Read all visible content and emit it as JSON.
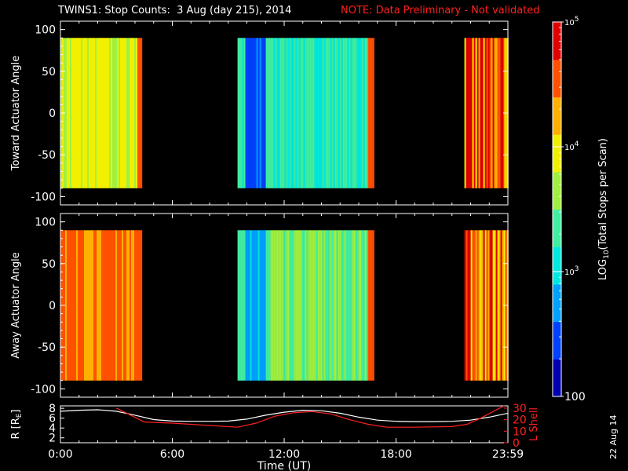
{
  "title": {
    "main": "TWINS1: Stop Counts:  3 Aug (day 215), 2014",
    "note": "NOTE: Data Preliminary - Not validated",
    "note_color": "#ff2020"
  },
  "stamp": "22 Aug 14",
  "chart_data": [
    {
      "type": "heatmap",
      "panel": "toward",
      "ylabel": "Toward Actuator Angle",
      "ylim": [
        -110,
        110
      ],
      "yticks": [
        100,
        50,
        0,
        -50,
        -100
      ],
      "x_range_hours": [
        0,
        24
      ],
      "data_y_range": [
        -90,
        90
      ],
      "segments": [
        {
          "start": "0:00",
          "end": "4:20",
          "level": "yellow-green",
          "log_counts": 3.85
        },
        {
          "start": "9:30",
          "end": "16:45",
          "level": "cyan with blue band near 10:00-11:00",
          "log_counts": 3.25
        },
        {
          "start": "21:40",
          "end": "24:00",
          "level": "mixed orange/yellow",
          "log_counts": 4.4
        }
      ]
    },
    {
      "type": "heatmap",
      "panel": "away",
      "ylabel": "Away Actuator Angle",
      "ylim": [
        -110,
        110
      ],
      "yticks": [
        100,
        50,
        0,
        -50,
        -100
      ],
      "x_range_hours": [
        0,
        24
      ],
      "data_y_range": [
        -90,
        90
      ],
      "segments": [
        {
          "start": "0:00",
          "end": "4:20",
          "level": "orange",
          "log_counts": 4.5
        },
        {
          "start": "9:30",
          "end": "16:45",
          "level": "cyan/green with blue band near 10:00-11:00",
          "log_counts": 3.5
        },
        {
          "start": "21:40",
          "end": "24:00",
          "level": "mixed orange/yellow",
          "log_counts": 4.5
        }
      ]
    },
    {
      "type": "line",
      "panel": "orbit",
      "ylabel_left": "R [R",
      "ylabel_left_sub": "E",
      "ylabel_left_end": "]",
      "ylabel_right": "L Shell",
      "xlabel": "Time (UT)",
      "xticks": [
        "0:00",
        "6:00",
        "12:00",
        "18:00",
        "23:59"
      ],
      "left_ylim": [
        1,
        8.5
      ],
      "left_yticks": [
        8,
        6,
        4,
        2
      ],
      "right_ylim": [
        0,
        32
      ],
      "right_yticks": [
        30,
        20,
        10,
        0
      ],
      "series": [
        {
          "color": "#ffffff",
          "x": [
            0,
            1,
            2,
            3,
            4,
            5,
            6,
            7,
            8,
            9,
            10,
            11,
            12,
            13,
            14,
            15,
            16,
            17,
            18,
            19,
            20,
            21,
            22,
            23,
            24
          ],
          "y": [
            7.4,
            7.6,
            7.7,
            7.4,
            6.6,
            5.7,
            5.4,
            5.35,
            5.35,
            5.4,
            5.8,
            6.6,
            7.2,
            7.6,
            7.5,
            7.0,
            6.2,
            5.6,
            5.35,
            5.3,
            5.3,
            5.35,
            5.6,
            6.2,
            7.0
          ]
        },
        {
          "color": "#ff2020",
          "x": [
            3.0,
            4.0,
            4.5,
            6,
            8,
            9.5,
            10.5,
            11.5,
            12.5,
            13.5,
            14.5,
            15.5,
            16.5,
            17.5,
            19,
            21,
            21.8,
            22.5,
            23.2,
            23.8
          ],
          "y": [
            30,
            22,
            18,
            17,
            15,
            13.5,
            17,
            23,
            26,
            27,
            25,
            20,
            16,
            13.5,
            13.5,
            14,
            16,
            21,
            27,
            32
          ]
        }
      ]
    }
  ],
  "colorbar": {
    "label": "LOG",
    "label_sub": "10",
    "label_end": "(Total Stops per Scan)",
    "ticks": [
      {
        "base": "10",
        "exp": "5",
        "log": 5
      },
      {
        "base": "10",
        "exp": "4",
        "log": 4
      },
      {
        "base": "10",
        "exp": "3",
        "log": 3
      },
      {
        "text": "100",
        "log": 2
      }
    ],
    "colors": [
      "#0000b0",
      "#0040ff",
      "#00a0ff",
      "#00e8e0",
      "#40f0a0",
      "#a0f040",
      "#f0f000",
      "#ffb000",
      "#ff5000",
      "#e00000"
    ]
  }
}
